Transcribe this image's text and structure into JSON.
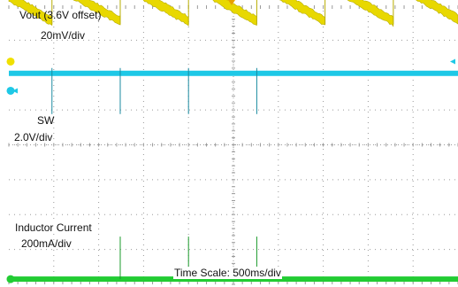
{
  "chart_data": {
    "type": "line",
    "title": "",
    "xlabel": "Time Scale: 500ms/div",
    "ylabel": "",
    "grid": true,
    "x_divisions": 10,
    "y_divisions": 8,
    "x_unit": "ms",
    "ms_per_div": 500,
    "xlim": [
      0,
      5000
    ],
    "series": [
      {
        "name": "Vout (3.6V offset)",
        "scale_label": "20mV/div",
        "color": "#e8d800",
        "edge_color": "#b8ad00",
        "y_unit": "mV",
        "zero_div": 7.15,
        "mv_per_div": 20,
        "shape": "sawtooth",
        "period_ms": 760,
        "first_edge_ms": 480,
        "high_mV": 30,
        "low_mV": 8,
        "ripple_mV": 2
      },
      {
        "name": "SW",
        "scale_label": "2.0V/div",
        "color": "#1ec8e6",
        "y_unit": "V",
        "zero_div": 5.55,
        "v_per_div": 2.0,
        "shape": "level",
        "level_V": 1.0,
        "spike_times_ms": [
          480,
          1240,
          2000,
          2760
        ]
      },
      {
        "name": "Inductor Current",
        "scale_label": "200mA/div",
        "color": "#22cc33",
        "y_unit": "mA",
        "zero_div": 0.15,
        "ma_per_div": 200,
        "shape": "level",
        "level_mA": 0,
        "spike_times_ms": [
          1240,
          2000,
          2760
        ]
      }
    ]
  }
}
